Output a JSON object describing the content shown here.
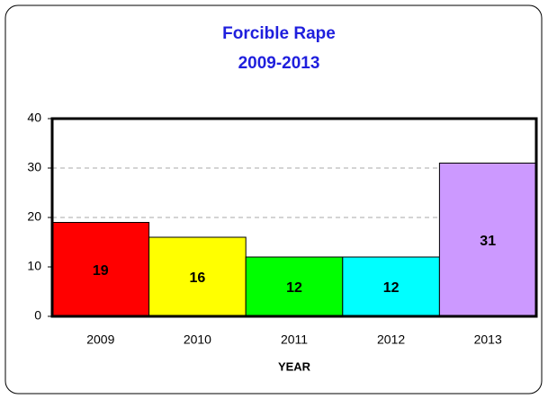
{
  "chart_data": {
    "type": "bar",
    "title": "Forcible Rape",
    "subtitle": "2009-2013",
    "categories": [
      "2009",
      "2010",
      "2011",
      "2012",
      "2013"
    ],
    "values": [
      19,
      16,
      12,
      12,
      31
    ],
    "colors": [
      "#ff0000",
      "#ffff00",
      "#00ff00",
      "#00ffff",
      "#cc99ff"
    ],
    "xlabel": "YEAR",
    "ylim": [
      0,
      40
    ],
    "yticks": [
      0,
      10,
      20,
      30,
      40
    ],
    "grid": true
  }
}
